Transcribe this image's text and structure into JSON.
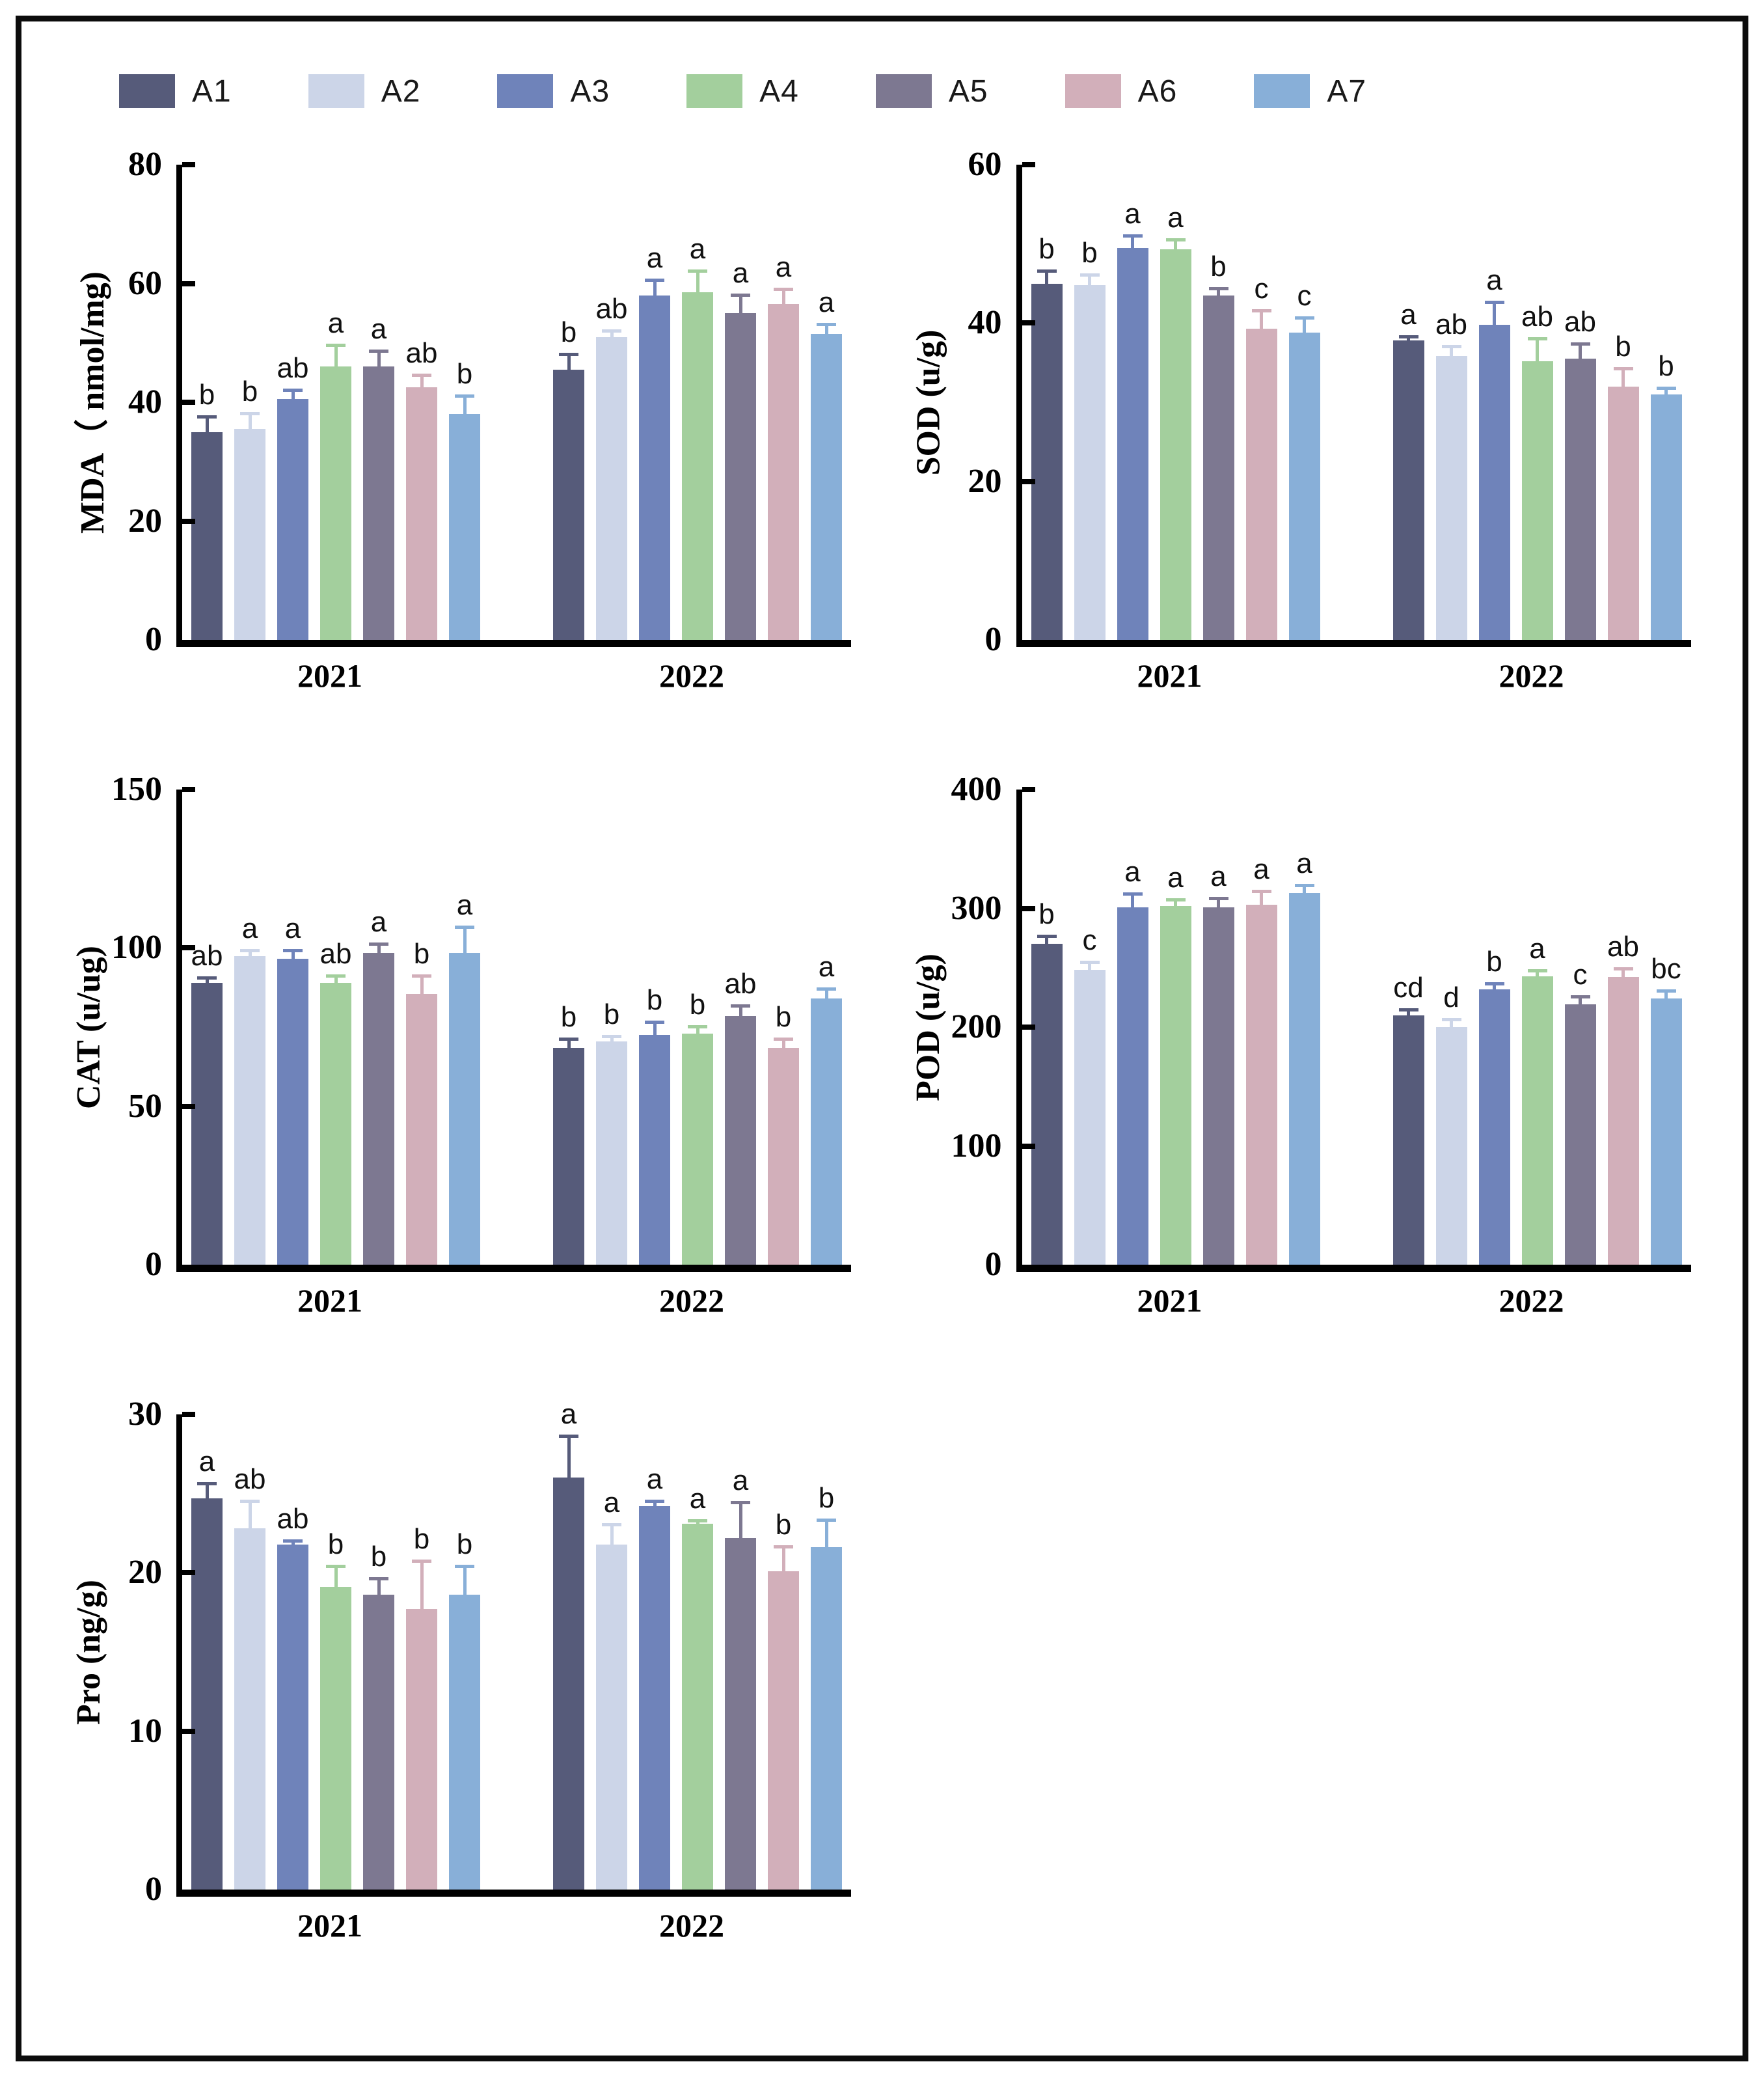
{
  "figure": {
    "frame_color": "#0c0c0c",
    "background": "#ffffff",
    "years": [
      "2021",
      "2022"
    ],
    "legend": [
      {
        "label": "A1",
        "color": "#565b7a"
      },
      {
        "label": "A2",
        "color": "#ccd5e8"
      },
      {
        "label": "A3",
        "color": "#6f83ba"
      },
      {
        "label": "A4",
        "color": "#a3cf9d"
      },
      {
        "label": "A5",
        "color": "#7d7891"
      },
      {
        "label": "A6",
        "color": "#d2afba"
      },
      {
        "label": "A7",
        "color": "#88afd8"
      }
    ]
  },
  "chart_data": [
    {
      "type": "bar",
      "title": "",
      "ylabel": "MDA（ nmol/mg)",
      "xlabel": "",
      "ylim": [
        0,
        80
      ],
      "yticks": [
        0,
        20,
        40,
        60,
        80
      ],
      "grid": false,
      "legend_position": "top",
      "categories": [
        "A1",
        "A2",
        "A3",
        "A4",
        "A5",
        "A6",
        "A7"
      ],
      "groups": [
        "2021",
        "2022"
      ],
      "series": [
        {
          "name": "2021",
          "values": [
            35,
            35.5,
            40.5,
            46,
            46,
            42.5,
            38
          ],
          "errors": [
            2.5,
            2.5,
            1.5,
            3.5,
            2.5,
            2,
            3
          ],
          "sig_letters": [
            "b",
            "b",
            "ab",
            "a",
            "a",
            "ab",
            "b"
          ]
        },
        {
          "name": "2022",
          "values": [
            45.5,
            51,
            58,
            58.5,
            55,
            56.5,
            51.5
          ],
          "errors": [
            2.5,
            1,
            2.5,
            3.5,
            3,
            2.5,
            1.5
          ],
          "sig_letters": [
            "b",
            "ab",
            "a",
            "a",
            "a",
            "a",
            "a"
          ]
        }
      ]
    },
    {
      "type": "bar",
      "title": "",
      "ylabel": "SOD (u/g)",
      "xlabel": "",
      "ylim": [
        0,
        60
      ],
      "yticks": [
        0,
        20,
        40,
        60
      ],
      "grid": false,
      "legend_position": "top",
      "categories": [
        "A1",
        "A2",
        "A3",
        "A4",
        "A5",
        "A6",
        "A7"
      ],
      "groups": [
        "2021",
        "2022"
      ],
      "series": [
        {
          "name": "2021",
          "values": [
            45,
            44.8,
            49.5,
            49.3,
            43.5,
            39.3,
            38.8
          ],
          "errors": [
            1.5,
            1.2,
            1.5,
            1.2,
            0.8,
            2.2,
            1.8
          ],
          "sig_letters": [
            "b",
            "b",
            "a",
            "a",
            "b",
            "c",
            "c"
          ]
        },
        {
          "name": "2022",
          "values": [
            37.8,
            35.8,
            39.8,
            35.2,
            35.5,
            32,
            31
          ],
          "errors": [
            0.4,
            1.2,
            2.8,
            2.8,
            1.8,
            2.2,
            0.7
          ],
          "sig_letters": [
            "a",
            "ab",
            "a",
            "ab",
            "ab",
            "b",
            "b"
          ]
        }
      ]
    },
    {
      "type": "bar",
      "title": "",
      "ylabel": "CAT (u/ug)",
      "xlabel": "",
      "ylim": [
        0,
        150
      ],
      "yticks": [
        0,
        50,
        100,
        150
      ],
      "grid": false,
      "legend_position": "top",
      "categories": [
        "A1",
        "A2",
        "A3",
        "A4",
        "A5",
        "A6",
        "A7"
      ],
      "groups": [
        "2021",
        "2022"
      ],
      "series": [
        {
          "name": "2021",
          "values": [
            89,
            97.5,
            96.5,
            89,
            98.5,
            85.5,
            98.5
          ],
          "errors": [
            1.5,
            1.5,
            2.5,
            2,
            2.5,
            5.5,
            8
          ],
          "sig_letters": [
            "ab",
            "a",
            "a",
            "ab",
            "a",
            "b",
            "a"
          ]
        },
        {
          "name": "2022",
          "values": [
            68.5,
            70.5,
            72.5,
            73,
            78.5,
            68.5,
            84
          ],
          "errors": [
            2.5,
            1.5,
            4,
            2,
            3,
            2.5,
            3
          ],
          "sig_letters": [
            "b",
            "b",
            "b",
            "b",
            "ab",
            "b",
            "a"
          ]
        }
      ]
    },
    {
      "type": "bar",
      "title": "",
      "ylabel": "POD (u/g)",
      "xlabel": "",
      "ylim": [
        0,
        400
      ],
      "yticks": [
        0,
        100,
        200,
        300,
        400
      ],
      "grid": false,
      "legend_position": "top",
      "categories": [
        "A1",
        "A2",
        "A3",
        "A4",
        "A5",
        "A6",
        "A7"
      ],
      "groups": [
        "2021",
        "2022"
      ],
      "series": [
        {
          "name": "2021",
          "values": [
            270,
            248,
            301,
            302,
            301,
            303,
            313
          ],
          "errors": [
            6,
            6,
            11,
            5,
            7,
            11,
            6
          ],
          "sig_letters": [
            "b",
            "c",
            "a",
            "a",
            "a",
            "a",
            "a"
          ]
        },
        {
          "name": "2022",
          "values": [
            210,
            200,
            232,
            243,
            219,
            242,
            224
          ],
          "errors": [
            4,
            6,
            4,
            4,
            6,
            7,
            6
          ],
          "sig_letters": [
            "cd",
            "d",
            "b",
            "a",
            "c",
            "ab",
            "bc"
          ]
        }
      ]
    },
    {
      "type": "bar",
      "title": "",
      "ylabel": "Pro (ng/g)",
      "xlabel": "",
      "ylim": [
        0,
        30
      ],
      "yticks": [
        0,
        10,
        20,
        30
      ],
      "grid": false,
      "legend_position": "top",
      "categories": [
        "A1",
        "A2",
        "A3",
        "A4",
        "A5",
        "A6",
        "A7"
      ],
      "groups": [
        "2021",
        "2022"
      ],
      "series": [
        {
          "name": "2021",
          "values": [
            24.7,
            22.8,
            21.8,
            19.1,
            18.6,
            17.7,
            18.6
          ],
          "errors": [
            0.9,
            1.7,
            0.2,
            1.3,
            1.0,
            3.0,
            1.8
          ],
          "sig_letters": [
            "a",
            "ab",
            "ab",
            "b",
            "b",
            "b",
            "b"
          ]
        },
        {
          "name": "2022",
          "values": [
            26,
            21.8,
            24.2,
            23.1,
            22.2,
            20.1,
            21.6
          ],
          "errors": [
            2.6,
            1.2,
            0.3,
            0.15,
            2.2,
            1.5,
            1.7
          ],
          "sig_letters": [
            "a",
            "a",
            "a",
            "a",
            "a",
            "b",
            "b"
          ]
        }
      ]
    }
  ]
}
